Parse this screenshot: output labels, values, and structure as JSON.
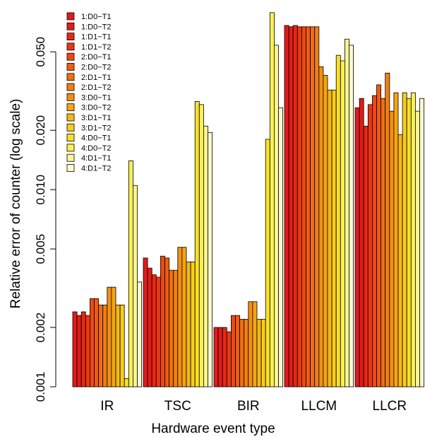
{
  "chart_data": {
    "type": "bar",
    "title": "",
    "xlabel": "Hardware event type",
    "ylabel": "Relative error of counter (log scale)",
    "yscale": "log",
    "ylim": [
      0.001,
      0.085
    ],
    "yticks": [
      0.001,
      0.002,
      0.005,
      0.01,
      0.02,
      0.05
    ],
    "ytick_labels": [
      "0.001",
      "0.002",
      "0.005",
      "0.010",
      "0.020",
      "0.050"
    ],
    "categories": [
      "IR",
      "TSC",
      "BIR",
      "LLCM",
      "LLCR"
    ],
    "legend_position": "top-left",
    "grid": false,
    "series": [
      {
        "name": "1:D0−T1",
        "color": "#E31A1C",
        "values": [
          0.0024,
          0.0045,
          0.002,
          0.068,
          0.026
        ]
      },
      {
        "name": "1:D0−T2",
        "color": "#E41C18",
        "values": [
          0.0023,
          0.004,
          0.002,
          0.067,
          0.029
        ]
      },
      {
        "name": "1:D1−T1",
        "color": "#E72814",
        "values": [
          0.0024,
          0.0037,
          0.002,
          0.068,
          0.021
        ]
      },
      {
        "name": "1:D1−T2",
        "color": "#EA3812",
        "values": [
          0.0023,
          0.0036,
          0.0019,
          0.067,
          0.027
        ]
      },
      {
        "name": "2:D0−T1",
        "color": "#EC4A12",
        "values": [
          0.0028,
          0.0046,
          0.0023,
          0.067,
          0.03
        ]
      },
      {
        "name": "2:D0−T2",
        "color": "#EF5C12",
        "values": [
          0.0028,
          0.0045,
          0.0023,
          0.067,
          0.034
        ]
      },
      {
        "name": "2:D1−T1",
        "color": "#F06E12",
        "values": [
          0.0026,
          0.0039,
          0.0022,
          0.067,
          0.029
        ]
      },
      {
        "name": "2:D1−T2",
        "color": "#F27F12",
        "values": [
          0.0026,
          0.0039,
          0.0022,
          0.067,
          0.039
        ]
      },
      {
        "name": "3:D0−T1",
        "color": "#F39012",
        "values": [
          0.0032,
          0.0051,
          0.0027,
          0.042,
          0.025
        ]
      },
      {
        "name": "3:D0−T2",
        "color": "#F5A414",
        "values": [
          0.0032,
          0.0051,
          0.0027,
          0.038,
          0.031
        ]
      },
      {
        "name": "3:D1−T1",
        "color": "#F6B818",
        "values": [
          0.0026,
          0.0043,
          0.0022,
          0.032,
          0.019
        ]
      },
      {
        "name": "3:D1−T2",
        "color": "#F8CC1C",
        "values": [
          0.0026,
          0.0043,
          0.0022,
          0.032,
          0.031
        ]
      },
      {
        "name": "4:D0−T1",
        "color": "#F9E028",
        "values": [
          0.0011,
          0.028,
          0.018,
          0.048,
          0.029
        ]
      },
      {
        "name": "4:D0−T2",
        "color": "#FAF056",
        "values": [
          0.014,
          0.027,
          0.079,
          0.045,
          0.031
        ]
      },
      {
        "name": "4:D1−T1",
        "color": "#FBF592",
        "values": [
          0.0105,
          0.021,
          0.054,
          0.058,
          0.025
        ]
      },
      {
        "name": "4:D1−T2",
        "color": "#FDFAD0",
        "values": [
          0.0034,
          0.0195,
          0.026,
          0.054,
          0.029
        ]
      }
    ]
  }
}
